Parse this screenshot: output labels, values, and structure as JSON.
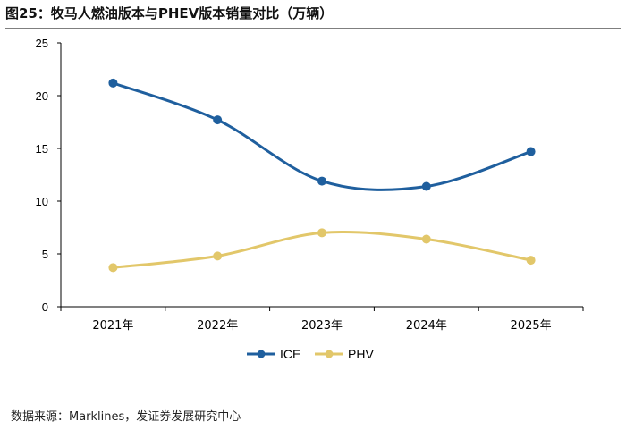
{
  "title": "图25：牧马人燃油版本与PHEV版本销量对比（万辆）",
  "source": "数据来源：Marklines，发证券发展研究中心",
  "colors": {
    "ICE": "#1f5f9e",
    "PHV": "#e2c76a",
    "axis": "#000000",
    "rule": "#7f7f7f"
  },
  "chart_data": {
    "type": "line",
    "title": "牧马人燃油版本与PHEV版本销量对比（万辆）",
    "categories": [
      "2021年",
      "2022年",
      "2023年",
      "2024年",
      "2025年"
    ],
    "series": [
      {
        "name": "ICE",
        "values": [
          21.2,
          17.7,
          11.9,
          11.4,
          14.7
        ]
      },
      {
        "name": "PHV",
        "values": [
          3.7,
          4.8,
          7.0,
          6.4,
          4.4
        ]
      }
    ],
    "ylim": [
      0,
      25
    ],
    "yticks": [
      0,
      5,
      10,
      15,
      20,
      25
    ],
    "xlabel": "",
    "ylabel": "",
    "grid": false,
    "legend": "bottom-center"
  }
}
